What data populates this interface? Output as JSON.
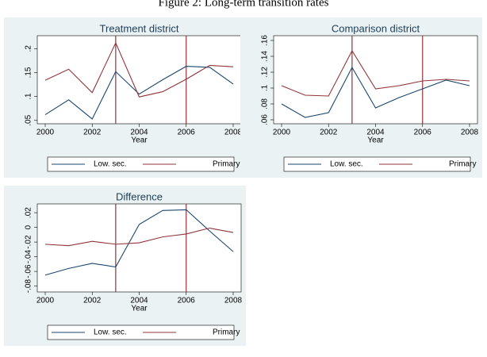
{
  "figure_title": "Figure 2: Long-term transition rates",
  "chart_data": [
    {
      "type": "line",
      "title": "Treatment district",
      "x_label": "Year",
      "x": [
        2000,
        2001,
        2002,
        2003,
        2004,
        2005,
        2006,
        2007,
        2008
      ],
      "series": [
        {
          "name": "Low. sec.",
          "color": "#1a476f",
          "values": [
            0.062,
            0.093,
            0.053,
            0.152,
            0.105,
            0.135,
            0.163,
            0.161,
            0.126
          ]
        },
        {
          "name": "Primary",
          "color": "#90353b",
          "values": [
            0.134,
            0.157,
            0.108,
            0.212,
            0.099,
            0.11,
            0.136,
            0.165,
            0.162
          ]
        }
      ],
      "vlines": [
        2003,
        2006
      ],
      "vline_color": "#90353b",
      "xlim": [
        2000,
        2008
      ],
      "xticks": [
        2000,
        2002,
        2004,
        2006,
        2008
      ],
      "ylim": [
        0.043,
        0.227
      ],
      "yticks": [
        {
          "value": 0.05,
          "label": ".05"
        },
        {
          "value": 0.1,
          "label": ".1"
        },
        {
          "value": 0.15,
          "label": ".15"
        },
        {
          "value": 0.2,
          "label": ".2"
        }
      ]
    },
    {
      "type": "line",
      "title": "Comparison district",
      "x_label": "Year",
      "x": [
        2000,
        2001,
        2002,
        2003,
        2004,
        2005,
        2006,
        2007,
        2008
      ],
      "series": [
        {
          "name": "Low. sec.",
          "color": "#1a476f",
          "values": [
            0.08,
            0.063,
            0.069,
            0.126,
            0.075,
            0.088,
            0.099,
            0.11,
            0.103
          ]
        },
        {
          "name": "Primary",
          "color": "#90353b",
          "values": [
            0.103,
            0.091,
            0.09,
            0.147,
            0.099,
            0.103,
            0.109,
            0.111,
            0.109
          ]
        }
      ],
      "vlines": [
        2003,
        2006
      ],
      "vline_color": "#90353b",
      "xlim": [
        2000,
        2008
      ],
      "xticks": [
        2000,
        2002,
        2004,
        2006,
        2008
      ],
      "ylim": [
        0.055,
        0.166
      ],
      "yticks": [
        {
          "value": 0.06,
          "label": ".06"
        },
        {
          "value": 0.08,
          "label": ".08"
        },
        {
          "value": 0.1,
          "label": ".1"
        },
        {
          "value": 0.12,
          "label": ".12"
        },
        {
          "value": 0.14,
          "label": ".14"
        },
        {
          "value": 0.16,
          "label": ".16"
        }
      ]
    },
    {
      "type": "line",
      "title": "Difference",
      "x_label": "Year",
      "x": [
        2000,
        2001,
        2002,
        2003,
        2004,
        2005,
        2006,
        2007,
        2008
      ],
      "series": [
        {
          "name": "Low. sec.",
          "color": "#1a476f",
          "values": [
            -0.065,
            -0.056,
            -0.049,
            -0.054,
            0.004,
            0.023,
            0.024,
            -0.005,
            -0.033
          ]
        },
        {
          "name": "Primary",
          "color": "#90353b",
          "values": [
            -0.023,
            -0.025,
            -0.019,
            -0.023,
            -0.021,
            -0.013,
            -0.009,
            -0.001,
            -0.007
          ]
        }
      ],
      "vlines": [
        2003,
        2006
      ],
      "vline_color": "#90353b",
      "xlim": [
        2000,
        2008
      ],
      "xticks": [
        2000,
        2002,
        2004,
        2006,
        2008
      ],
      "ylim": [
        -0.088,
        0.032
      ],
      "yticks": [
        {
          "value": -0.08,
          "label": "-.08"
        },
        {
          "value": -0.06,
          "label": "-.06"
        },
        {
          "value": -0.04,
          "label": "-.04"
        },
        {
          "value": -0.02,
          "label": "-.02"
        },
        0,
        {
          "value": 0.02,
          "label": ".02"
        }
      ]
    }
  ]
}
